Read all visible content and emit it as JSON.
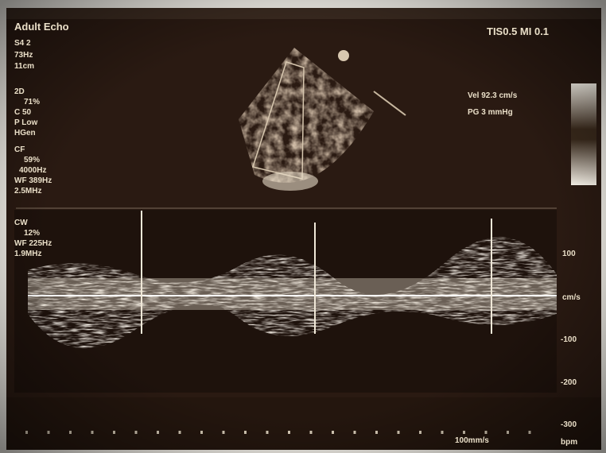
{
  "header": {
    "mode": "Adult Echo",
    "probe": "S4 2",
    "frame_rate": "73Hz",
    "depth": "11cm",
    "safety": "TIS0.5  MI 0.1"
  },
  "params_2d": {
    "label": "2D",
    "items": [
      "71%",
      "C 50",
      "P Low",
      "HGen"
    ]
  },
  "params_cf": {
    "label": "CF",
    "items": [
      "59%",
      "4000Hz",
      "WF 389Hz",
      "2.5MHz"
    ]
  },
  "params_cw": {
    "label": "CW",
    "items": [
      "12%",
      "WF 225Hz",
      "1.9MHz"
    ]
  },
  "measurements": {
    "vel": "Vel  92.3 cm/s",
    "pg": "PG     3 mmHg"
  },
  "doppler_scale": {
    "top": "100",
    "unit": "cm/s",
    "neg1": "-100",
    "neg2": "-200",
    "neg3": "-300",
    "bpm": "bpm",
    "sweep": "100mm/s"
  }
}
